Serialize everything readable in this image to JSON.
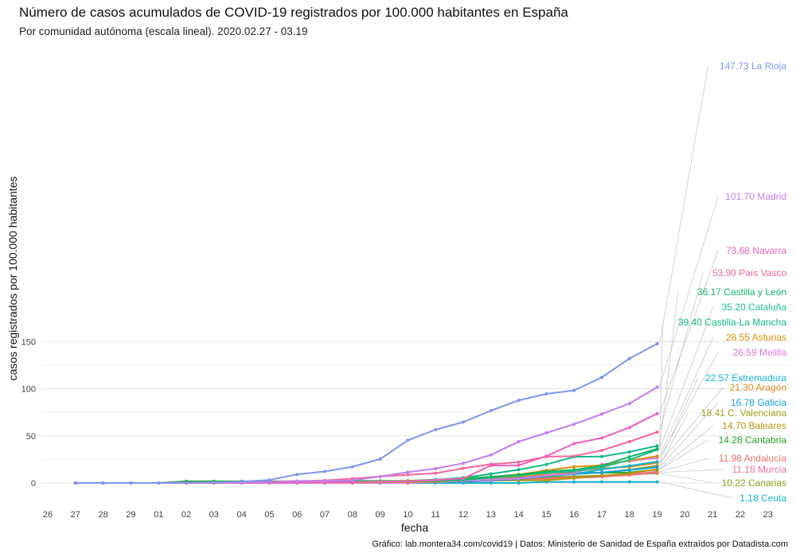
{
  "chart_data": {
    "type": "line",
    "title": "Número de casos acumulados de COVID-19 registrados por 100.000 habitantes en España",
    "subtitle": "Por comunidad autónoma (escala lineal). 2020.02.27 - 03.19",
    "xlabel": "fecha",
    "ylabel": "casos registrados por 100.000 habitantes",
    "caption": "Gráfico: lab.montera34.com/covid19 | Datos: Ministerio de Sanidad de España extraídos por Datadista.com",
    "x_ticks": [
      "26",
      "27",
      "28",
      "29",
      "01",
      "02",
      "03",
      "04",
      "05",
      "06",
      "07",
      "08",
      "09",
      "10",
      "11",
      "12",
      "13",
      "14",
      "15",
      "16",
      "17",
      "18",
      "19",
      "20",
      "21",
      "22",
      "23"
    ],
    "x": [
      "27",
      "28",
      "29",
      "01",
      "02",
      "03",
      "04",
      "05",
      "06",
      "07",
      "08",
      "09",
      "10",
      "11",
      "12",
      "13",
      "14",
      "15",
      "16",
      "17",
      "18",
      "19"
    ],
    "y_ticks": [
      0,
      50,
      100,
      150
    ],
    "ylim": [
      -7,
      158
    ],
    "grid": true,
    "legend": "none",
    "series": [
      {
        "name": "La Rioja",
        "label": "147.73 La Rioja",
        "color": "#7f96f0",
        "values": [
          0,
          0,
          0,
          0,
          0.5,
          0.8,
          1.5,
          3.2,
          9.1,
          12.2,
          17.2,
          25.4,
          45.3,
          56.5,
          64.6,
          76.8,
          87.7,
          94.5,
          98.2,
          112,
          132,
          147.73
        ]
      },
      {
        "name": "Madrid",
        "label": "101.70 Madrid",
        "color": "#c17ef0",
        "values": [
          0,
          0,
          0,
          0,
          0.2,
          0.5,
          0.8,
          1.2,
          1.8,
          2.1,
          2.9,
          6.9,
          11.5,
          15.3,
          20.9,
          29.8,
          43.9,
          53.2,
          62.4,
          73.1,
          84.3,
          101.7
        ]
      },
      {
        "name": "Navarra",
        "label": "73.68 Navarra",
        "color": "#f062b8",
        "values": [
          0,
          0,
          0,
          0,
          0,
          0,
          0,
          0.2,
          0.5,
          0.5,
          0.9,
          1.5,
          1.8,
          3.1,
          4.8,
          18.6,
          18.7,
          28.5,
          41.8,
          47.8,
          58.9,
          73.68
        ]
      },
      {
        "name": "País Vasco",
        "label": "53.90 País Vasco",
        "color": "#f5669a",
        "values": [
          0,
          0,
          0,
          0,
          0.3,
          0.6,
          0.8,
          1.2,
          2.1,
          2.8,
          4.6,
          6.8,
          8.8,
          10.3,
          15.6,
          19.9,
          22.1,
          27.9,
          28.5,
          34.6,
          43.9,
          53.9
        ]
      },
      {
        "name": "Castilla y León",
        "label": "36.17 Castilla y León",
        "color": "#11b563",
        "values": [
          0,
          0,
          0,
          0,
          0.2,
          0.4,
          0.6,
          0.8,
          1,
          1.2,
          1.4,
          1.6,
          1.9,
          2.5,
          3.6,
          6.4,
          8.5,
          12.2,
          13.9,
          18.3,
          27.8,
          36.17
        ]
      },
      {
        "name": "Cataluña",
        "label": "35.20 Cataluña",
        "color": "#1cbf96",
        "values": [
          0,
          0,
          0,
          0,
          0.2,
          0.4,
          0.6,
          0.8,
          1,
          1.1,
          1.3,
          1.5,
          1.8,
          2.4,
          3.2,
          5.6,
          8.2,
          10.8,
          12.6,
          16.5,
          24.6,
          35.2
        ]
      },
      {
        "name": "Castilla-La Mancha",
        "label": "39.40 Castilla-La Mancha",
        "color": "#10b88a",
        "values": [
          0,
          0,
          0,
          0,
          0,
          0,
          0.2,
          0.4,
          0.6,
          0.8,
          1,
          1.3,
          1.8,
          3.4,
          5.7,
          9.6,
          14.1,
          19.7,
          27.8,
          28.0,
          33.0,
          39.4
        ]
      },
      {
        "name": "Asturias",
        "label": "28.55 Asturias",
        "color": "#d99008",
        "values": [
          0,
          0,
          0,
          0,
          0,
          0.2,
          0.3,
          0.4,
          0.5,
          0.6,
          0.7,
          0.9,
          1.1,
          1.6,
          3.2,
          6.4,
          8.9,
          13.4,
          17.2,
          18.8,
          23.7,
          28.55
        ]
      },
      {
        "name": "Melilla",
        "label": "26.59 Melilla",
        "color": "#e378dc",
        "values": [
          0,
          0,
          0,
          0,
          0,
          0,
          0,
          0,
          0,
          0,
          0,
          0,
          0,
          1.2,
          2.3,
          3.5,
          4.6,
          8.1,
          10.4,
          19.7,
          23.4,
          26.59
        ]
      },
      {
        "name": "Extremadura",
        "label": "22.57 Extremadura",
        "color": "#15b3d6",
        "values": [
          0,
          0,
          0,
          0,
          0,
          0.1,
          0.2,
          0.3,
          0.4,
          0.5,
          0.6,
          0.7,
          0.9,
          1.3,
          2.2,
          3.6,
          5.3,
          7.8,
          9.6,
          14.3,
          18.2,
          22.57
        ]
      },
      {
        "name": "Aragón",
        "label": "21.30 Aragón",
        "color": "#e08a22",
        "values": [
          0,
          0,
          0,
          0,
          0,
          0.1,
          0.2,
          0.3,
          0.5,
          0.6,
          0.7,
          0.9,
          1.5,
          2.6,
          3.4,
          5.2,
          5.6,
          9.8,
          12.7,
          15.4,
          17.2,
          21.3
        ]
      },
      {
        "name": "Galicia",
        "label": "16.78 Galicia",
        "color": "#149fe0",
        "values": [
          0,
          0,
          0,
          0,
          0,
          0,
          0.1,
          0.2,
          0.3,
          0.4,
          0.5,
          0.6,
          0.7,
          0.9,
          1.5,
          2.6,
          4.1,
          7.2,
          9.5,
          11.1,
          13.7,
          16.78
        ]
      },
      {
        "name": "C. Valenciana",
        "label": "18.41 C. Valenciana",
        "color": "#a3a31a",
        "values": [
          0,
          0,
          0,
          0,
          0.2,
          0.3,
          0.4,
          0.6,
          0.9,
          1.1,
          1.3,
          1.6,
          2.4,
          3.2,
          4.4,
          5.6,
          6.8,
          8.1,
          9.4,
          11.2,
          14.1,
          18.41
        ]
      },
      {
        "name": "Baleares",
        "label": "14.70 Baleares",
        "color": "#b69612",
        "values": [
          0,
          0,
          0,
          0,
          0.1,
          0.2,
          0.3,
          0.5,
          0.7,
          0.8,
          1,
          1.4,
          1.9,
          2.1,
          2.4,
          2.6,
          2.7,
          2.9,
          5.1,
          7.8,
          10.1,
          14.7
        ]
      },
      {
        "name": "Cantabria",
        "label": "14.28 Cantabria",
        "color": "#1aa826",
        "values": [
          0,
          0,
          0,
          0,
          1.8,
          1.8,
          1.8,
          1.8,
          1.8,
          1.9,
          2.1,
          2.2,
          2.3,
          3.6,
          4.7,
          6.6,
          9.0,
          10.6,
          10.8,
          10.9,
          11.2,
          14.28
        ]
      },
      {
        "name": "Andalucía",
        "label": "11.98 Andalucía",
        "color": "#f07070",
        "values": [
          0,
          0,
          0,
          0,
          0,
          0.1,
          0.2,
          0.3,
          0.4,
          0.5,
          0.6,
          0.7,
          0.8,
          1.0,
          1.6,
          2.6,
          3.4,
          4.6,
          5.8,
          7.2,
          8.9,
          11.98
        ]
      },
      {
        "name": "Murcia",
        "label": "11.18 Murcia",
        "color": "#f06ea6",
        "values": [
          0,
          0,
          0,
          0,
          0,
          0,
          0.1,
          0.2,
          0.3,
          0.4,
          0.5,
          0.6,
          0.7,
          0.9,
          1.4,
          2.3,
          3.1,
          4.2,
          5.3,
          6.7,
          8.4,
          11.18
        ]
      },
      {
        "name": "Canarias",
        "label": "10.22 Canarias",
        "color": "#8aa31a",
        "values": [
          0,
          0,
          0,
          0,
          0.2,
          0.3,
          0.5,
          0.6,
          0.8,
          0.9,
          1.1,
          1.3,
          1.6,
          1.9,
          2.3,
          3.4,
          4.5,
          6.1,
          6.9,
          7.9,
          9.1,
          10.22
        ]
      },
      {
        "name": "Ceuta",
        "label": "1.18 Ceuta",
        "color": "#11b3cc",
        "values": [
          0,
          0,
          0,
          0,
          0,
          0,
          0,
          0,
          0,
          0,
          0,
          0,
          0,
          0,
          0,
          0,
          0,
          1.18,
          1.18,
          1.18,
          1.18,
          1.18
        ]
      }
    ]
  }
}
